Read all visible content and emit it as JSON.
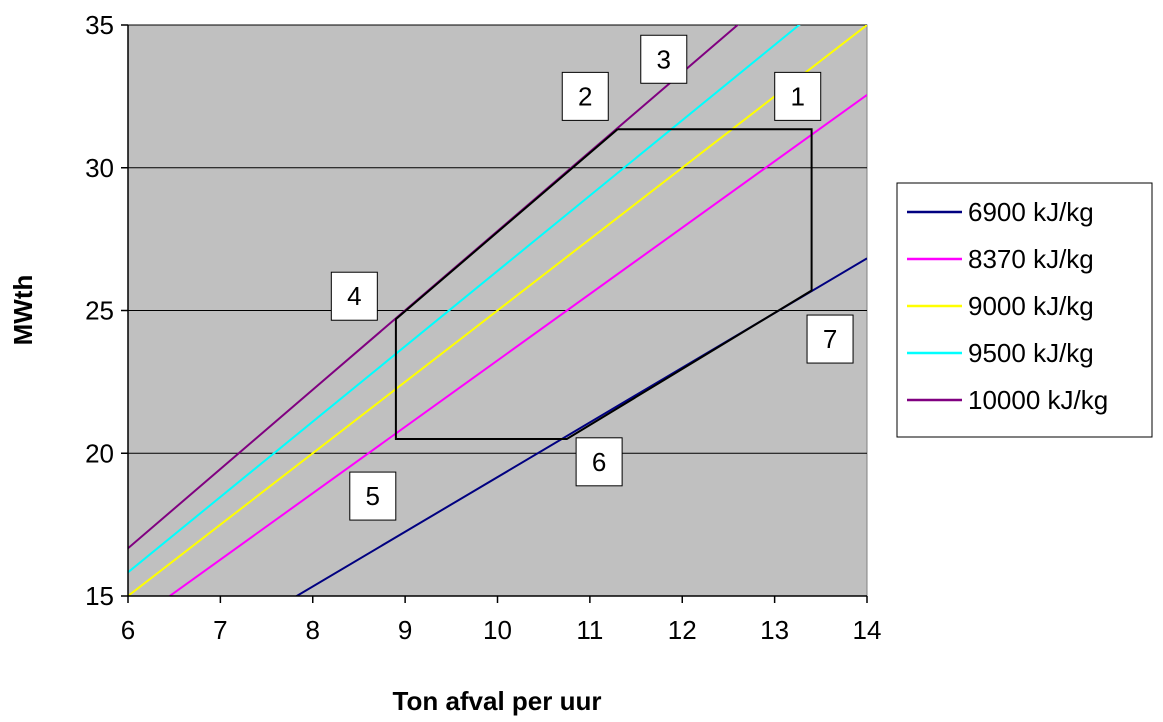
{
  "chart_data": {
    "type": "line",
    "title": "",
    "xlabel": "Ton afval per uur",
    "ylabel": "MWth",
    "xlim": [
      6,
      14
    ],
    "ylim": [
      15,
      35
    ],
    "x_ticks": [
      "6",
      "7",
      "8",
      "9",
      "10",
      "11",
      "12",
      "13",
      "14"
    ],
    "y_ticks": [
      "15",
      "20",
      "25",
      "30",
      "35"
    ],
    "grid": "horizontal",
    "plot_background": "#c0c0c0",
    "legend_position": "right",
    "series": [
      {
        "name": "6900 kJ/kg",
        "color": "#000080",
        "x": [
          6,
          14
        ],
        "y": [
          11.5,
          26.83
        ]
      },
      {
        "name": "8370 kJ/kg",
        "color": "#ff00ff",
        "x": [
          6,
          14
        ],
        "y": [
          13.95,
          32.55
        ]
      },
      {
        "name": "9000 kJ/kg",
        "color": "#ffff00",
        "x": [
          6,
          14
        ],
        "y": [
          15.0,
          35.0
        ]
      },
      {
        "name": "9500 kJ/kg",
        "color": "#00ffff",
        "x": [
          6,
          14
        ],
        "y": [
          15.83,
          36.94
        ]
      },
      {
        "name": "10000 kJ/kg",
        "color": "#800080",
        "x": [
          6,
          14
        ],
        "y": [
          16.67,
          38.89
        ]
      }
    ],
    "operating_envelope": {
      "color": "#000000",
      "x": [
        11.3,
        13.4,
        13.4,
        10.75,
        8.9,
        8.9,
        11.3
      ],
      "y": [
        31.35,
        31.35,
        25.7,
        20.5,
        20.5,
        24.7,
        31.35
      ]
    },
    "annotations": [
      {
        "label": "1",
        "x": 13.25,
        "y": 32.5
      },
      {
        "label": "2",
        "x": 10.95,
        "y": 32.5
      },
      {
        "label": "3",
        "x": 11.8,
        "y": 33.8
      },
      {
        "label": "4",
        "x": 8.45,
        "y": 25.5
      },
      {
        "label": "5",
        "x": 8.65,
        "y": 18.5
      },
      {
        "label": "6",
        "x": 11.1,
        "y": 19.7
      },
      {
        "label": "7",
        "x": 13.6,
        "y": 24.0
      }
    ]
  }
}
